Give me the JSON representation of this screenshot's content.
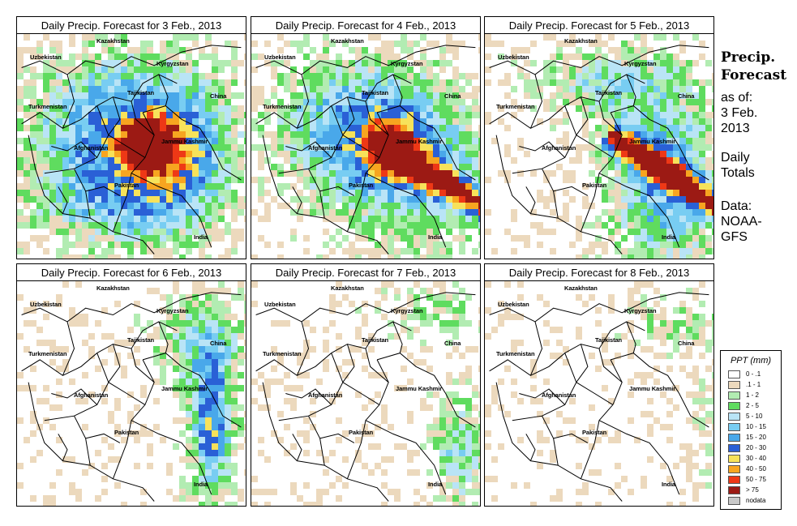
{
  "panels": [
    {
      "title": "Daily Precip. Forecast for  3 Feb., 2013",
      "day": 3,
      "colors": {
        "n": 58,
        "s": 42,
        "l": 9,
        "o": 5,
        "r": 2
      }
    },
    {
      "title": "Daily Precip. Forecast for  4 Feb., 2013",
      "day": 4,
      "colors": {
        "n": 52,
        "s": 40,
        "l": 10,
        "o": 6,
        "r": 3
      }
    },
    {
      "title": "Daily Precip. Forecast for  5 Feb., 2013",
      "day": 5,
      "colors": {
        "n": 44,
        "s": 32,
        "l": 9,
        "o": 5,
        "r": 2
      }
    },
    {
      "title": "Daily Precip. Forecast for  6 Feb., 2013",
      "day": 6,
      "colors": {
        "n": 26,
        "s": 16,
        "l": 5,
        "o": 2,
        "r": 0
      }
    },
    {
      "title": "Daily Precip. Forecast for  7 Feb., 2013",
      "day": 7,
      "colors": {
        "n": 14,
        "s": 9,
        "l": 2,
        "o": 0,
        "r": 0
      }
    },
    {
      "title": "Daily Precip. Forecast for  8 Feb., 2013",
      "day": 8,
      "colors": {
        "n": 10,
        "s": 6,
        "l": 1,
        "o": 0,
        "r": 0
      }
    }
  ],
  "map_labels": {
    "kazakhstan": "Kazakhstan",
    "uzbekistan": "Uzbekistan",
    "kyrgyzstan": "Kyrgyzstan",
    "tajikistan": "Tajikistan",
    "china": "China",
    "turkmenistan": "Turkmenistan",
    "afghanistan": "Afghanistan",
    "jammu_kashmir": "Jammu Kashmir",
    "pakistan": "Pakistan",
    "india": "India"
  },
  "sidebar": {
    "heading1": "Precip.",
    "heading2": "Forecast",
    "asof1": "as of:",
    "asof2": "3 Feb.",
    "asof3": "2013",
    "daily1": "Daily",
    "daily2": "Totals",
    "data1": "Data:",
    "data2": "NOAA-",
    "data3": "GFS"
  },
  "legend": {
    "title": "PPT (mm)",
    "items": [
      {
        "label": "0 - .1",
        "color": "#ffffff"
      },
      {
        "label": ".1 - 1",
        "color": "#ecd9bd"
      },
      {
        "label": "1 - 2",
        "color": "#b2ecb2"
      },
      {
        "label": "2 - 5",
        "color": "#5fdc5f"
      },
      {
        "label": "5 - 10",
        "color": "#b9e4f6"
      },
      {
        "label": "10 - 15",
        "color": "#78cdf2"
      },
      {
        "label": "15 - 20",
        "color": "#49a8ea"
      },
      {
        "label": "20 - 30",
        "color": "#2a60d6"
      },
      {
        "label": "30 - 40",
        "color": "#f7e25a"
      },
      {
        "label": "40 - 50",
        "color": "#f7a520"
      },
      {
        "label": "50 - 75",
        "color": "#ee3816"
      },
      {
        "label": "> 75",
        "color": "#9c1a14"
      },
      {
        "label": "nodata",
        "color": "#c8c8c8"
      }
    ]
  }
}
